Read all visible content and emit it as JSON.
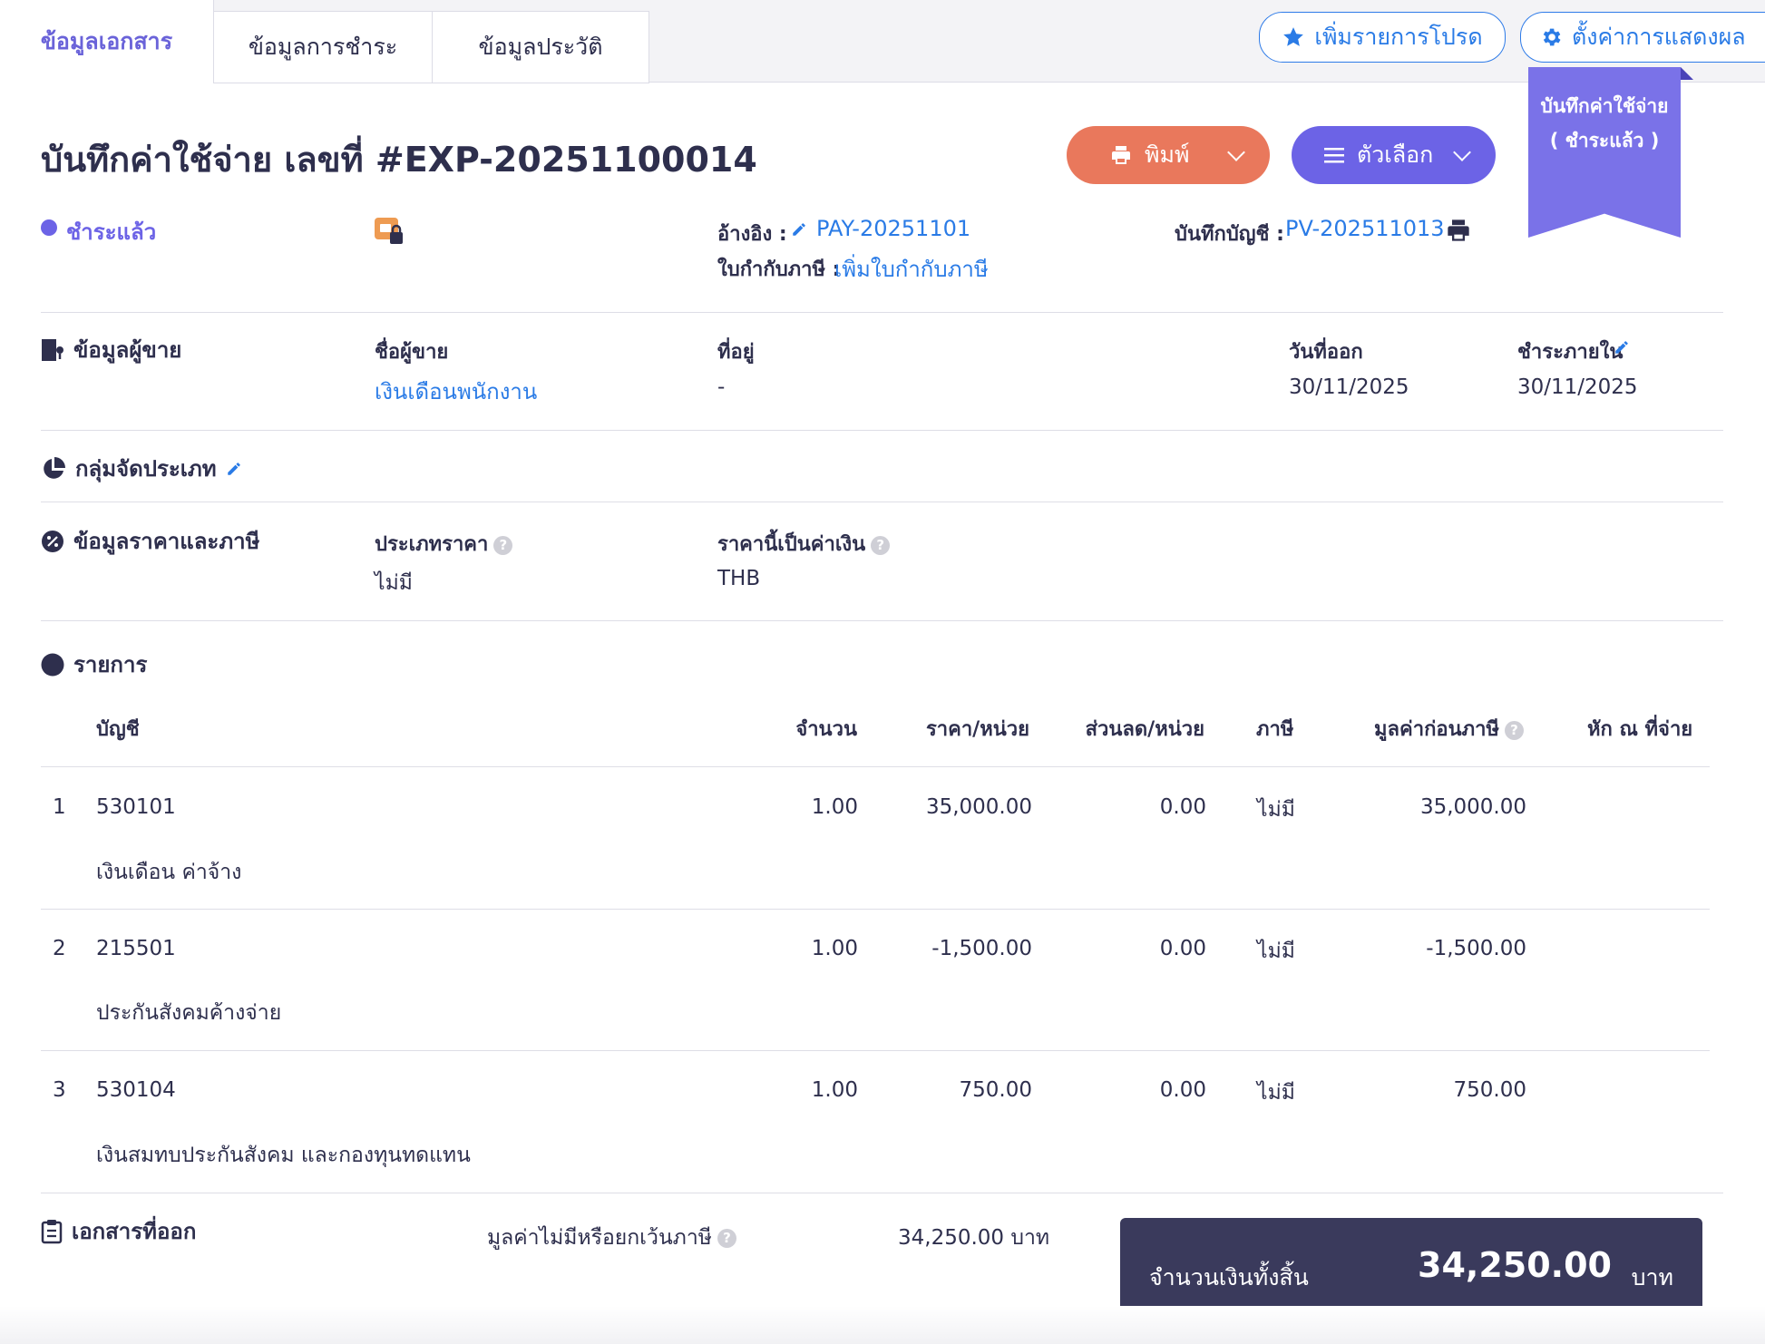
{
  "tabs": [
    {
      "label": "ข้อมูลเอกสาร"
    },
    {
      "label": "ข้อมูลการชำระ"
    },
    {
      "label": "ข้อมูลประวัติ"
    }
  ],
  "top_actions": {
    "favorite_label": "เพิ่มรายการโปรด",
    "display_settings_label": "ตั้งค่าการแสดงผล"
  },
  "ribbon": {
    "line1": "บันทึกค่าใช้จ่าย",
    "line2": "( ชำระแล้ว )"
  },
  "header": {
    "title": "บันทึกค่าใช้จ่าย เลขที่ #EXP-20251100014",
    "print_label": "พิมพ์",
    "options_label": "ตัวเลือก",
    "status": "ชำระแล้ว",
    "reference_label": "อ้างอิง :",
    "reference_value": "PAY-20251101",
    "tax_invoice_label": "ใบกำกับภาษี :",
    "tax_invoice_link": "เพิ่มใบกำกับภาษี",
    "journal_label": "บันทึกบัญชี :",
    "journal_value": "PV-202511013"
  },
  "seller": {
    "section_title": "ข้อมูลผู้ขาย",
    "name_label": "ชื่อผู้ขาย",
    "name_value": "เงินเดือนพนักงาน",
    "address_label": "ที่อยู่",
    "address_value": "-",
    "issue_date_label": "วันที่ออก",
    "issue_date_value": "30/11/2025",
    "due_date_label": "ชำระภายใน",
    "due_date_value": "30/11/2025"
  },
  "category": {
    "section_title": "กลุ่มจัดประเภท"
  },
  "pricing": {
    "section_title": "ข้อมูลราคาและภาษี",
    "price_type_label": "ประเภทราคา",
    "price_type_value": "ไม่มี",
    "currency_label": "ราคานี้เป็นค่าเงิน",
    "currency_value": "THB"
  },
  "items": {
    "section_title": "รายการ",
    "columns": {
      "account": "บัญชี",
      "qty": "จำนวน",
      "unit_price": "ราคา/หน่วย",
      "discount": "ส่วนลด/หน่วย",
      "tax": "ภาษี",
      "pre_tax": "มูลค่าก่อนภาษี",
      "withholding": "หัก ณ ที่จ่าย"
    },
    "rows": [
      {
        "no": "1",
        "account": "530101",
        "desc": "เงินเดือน ค่าจ้าง",
        "qty": "1.00",
        "unit_price": "35,000.00",
        "discount": "0.00",
        "tax": "ไม่มี",
        "pre_tax": "35,000.00"
      },
      {
        "no": "2",
        "account": "215501",
        "desc": "ประกันสังคมค้างจ่าย",
        "qty": "1.00",
        "unit_price": "-1,500.00",
        "discount": "0.00",
        "tax": "ไม่มี",
        "pre_tax": "-1,500.00"
      },
      {
        "no": "3",
        "account": "530104",
        "desc": "เงินสมทบประกันสังคม และกองทุนทดแทน",
        "qty": "1.00",
        "unit_price": "750.00",
        "discount": "0.00",
        "tax": "ไม่มี",
        "pre_tax": "750.00"
      }
    ]
  },
  "footer": {
    "issued_docs_title": "เอกสารที่ออก",
    "exempt_label": "มูลค่าไม่มีหรือยกเว้นภาษี",
    "exempt_value": "34,250.00 บาท",
    "total_label": "จำนวนเงินทั้งสิ้น",
    "total_amount": "34,250.00",
    "total_unit": "บาท"
  },
  "colors": {
    "accent": "#6c63e6",
    "link": "#2a7be6",
    "print_button": "#e9785c",
    "total_box": "#3a3a5c"
  }
}
